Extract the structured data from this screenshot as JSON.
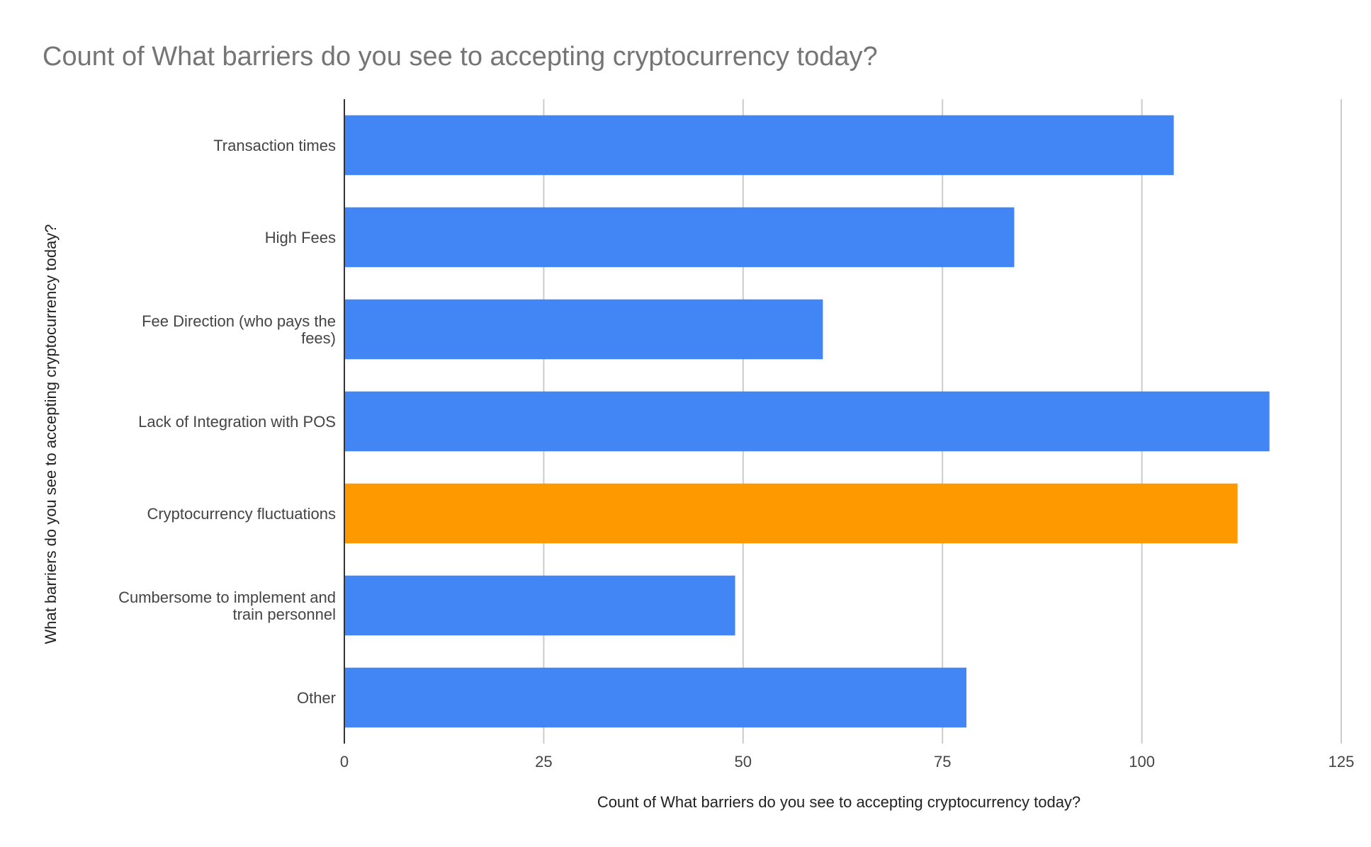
{
  "chart_data": {
    "type": "bar",
    "orientation": "horizontal",
    "title": "Count of What barriers do you see to accepting cryptocurrency today?",
    "xlabel": "Count of What barriers do you see to accepting cryptocurrency today?",
    "ylabel": "What barriers do you see to accepting cryptocurrency today?",
    "categories": [
      [
        "Transaction times"
      ],
      [
        "High Fees"
      ],
      [
        "Fee Direction (who pays the",
        "fees)"
      ],
      [
        "Lack of Integration with POS"
      ],
      [
        "Cryptocurrency fluctuations"
      ],
      [
        "Cumbersome to implement and",
        "train personnel"
      ],
      [
        "Other"
      ]
    ],
    "values": [
      104,
      84,
      60,
      116,
      112,
      49,
      78
    ],
    "bar_colors": [
      "#4285f4",
      "#4285f4",
      "#4285f4",
      "#4285f4",
      "#ff9900",
      "#4285f4",
      "#4285f4"
    ],
    "xlim": [
      0,
      125
    ],
    "xticks": [
      0,
      25,
      50,
      75,
      100,
      125
    ],
    "grid": true,
    "legend": "none"
  }
}
